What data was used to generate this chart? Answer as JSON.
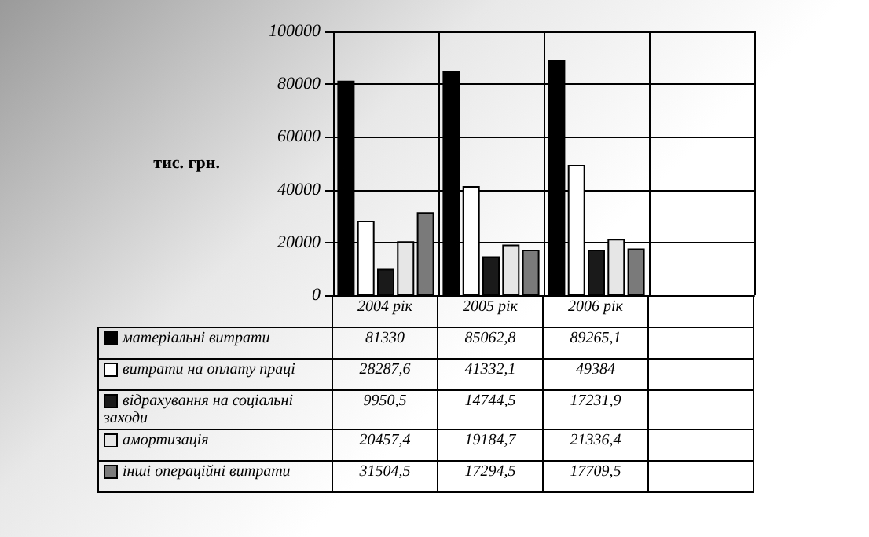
{
  "chart_data": {
    "type": "bar",
    "ylabel": "тис. грн.",
    "categories": [
      "2004 рік",
      "2005 рік",
      "2006 рік",
      null
    ],
    "series": [
      {
        "name": "матеріальні витрати",
        "color": "#000000",
        "values": [
          81330,
          85062.8,
          89265.1,
          null
        ],
        "value_labels": [
          "81330",
          "85062,8",
          "89265,1",
          null
        ]
      },
      {
        "name": "витрати на оплату праці",
        "color": "#ffffff",
        "values": [
          28287.6,
          41332.1,
          49384,
          null
        ],
        "value_labels": [
          "28287,6",
          "41332,1",
          "49384",
          null
        ]
      },
      {
        "name": "відрахування на соціальні заходи",
        "color": "#1a1a1a",
        "values": [
          9950.5,
          14744.5,
          17231.9,
          null
        ],
        "value_labels": [
          "9950,5",
          "14744,5",
          "17231,9",
          null
        ]
      },
      {
        "name": "амортизація",
        "color": "#e6e6e6",
        "values": [
          20457.4,
          19184.7,
          21336.4,
          null
        ],
        "value_labels": [
          "20457,4",
          "19184,7",
          "21336,4",
          null
        ]
      },
      {
        "name": "інші операційні витрати",
        "color": "#7a7a7a",
        "values": [
          31504.5,
          17294.5,
          17709.5,
          null
        ],
        "value_labels": [
          "31504,5",
          "17294,5",
          "17709,5",
          null
        ]
      }
    ],
    "ylim": [
      0,
      100000
    ],
    "yticks": [
      0,
      20000,
      40000,
      60000,
      80000,
      100000
    ],
    "grid": true,
    "legend": "bottom"
  }
}
